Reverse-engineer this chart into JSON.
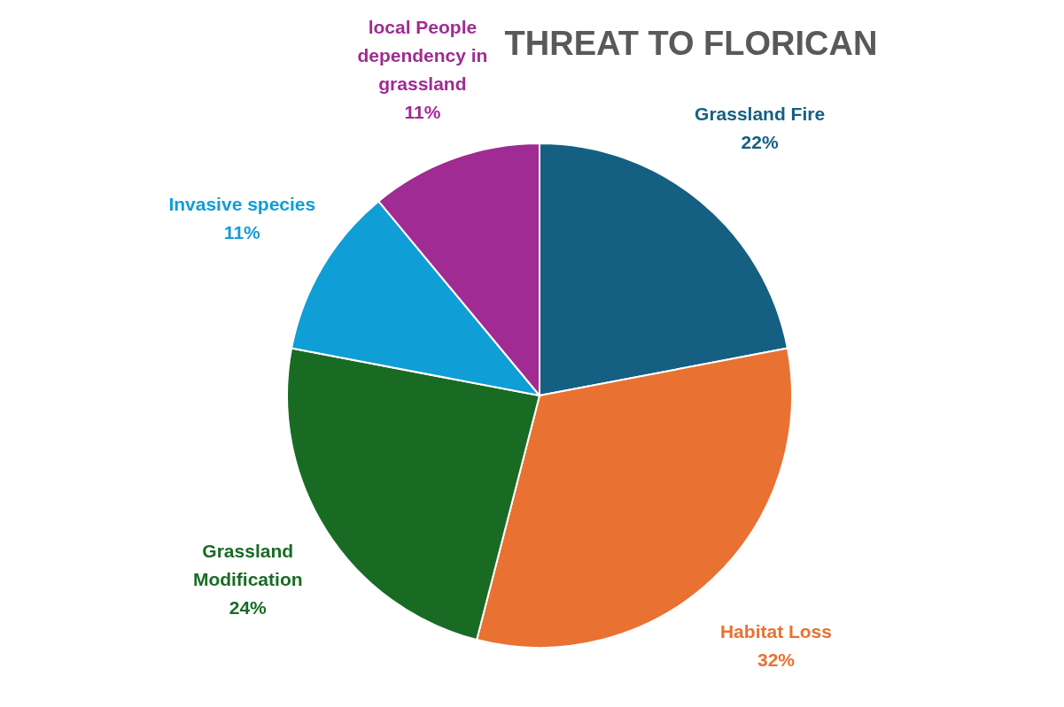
{
  "chart_data": {
    "type": "pie",
    "title": "THREAT TO FLORICAN",
    "categories": [
      "Grassland Fire",
      "Habitat Loss",
      "Grassland Modification",
      "Invasive species",
      "local People dependency in grassland"
    ],
    "values": [
      22,
      32,
      24,
      11,
      11
    ],
    "value_labels": [
      "22%",
      "32%",
      "24%",
      "11%",
      "11%"
    ],
    "colors": [
      "#156082",
      "#e97132",
      "#196b24",
      "#0f9ed5",
      "#a02b93"
    ]
  }
}
